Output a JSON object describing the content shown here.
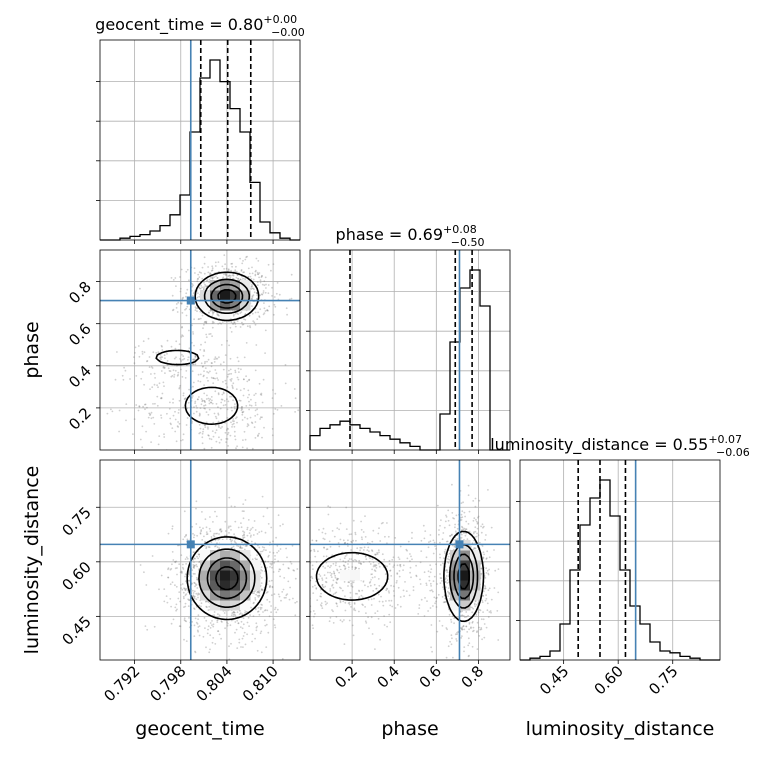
{
  "chart_data": {
    "type": "corner",
    "parameters": [
      {
        "key": "geocent_time",
        "label": "geocent_time",
        "range": [
          0.7875,
          0.8135
        ],
        "ticks": [
          0.792,
          0.798,
          0.804,
          0.81
        ],
        "tick_labels": [
          "0.792",
          "0.798",
          "0.804",
          "0.810"
        ],
        "truth": 0.7993,
        "title_label": "geocent_time",
        "title_median": "0.80",
        "title_plus": "+0.00",
        "title_minus": "−0.00"
      },
      {
        "key": "phase",
        "label": "phase",
        "range": [
          0.0,
          0.95
        ],
        "ticks": [
          0.2,
          0.4,
          0.6,
          0.8
        ],
        "tick_labels": [
          "0.2",
          "0.4",
          "0.6",
          "0.8"
        ],
        "truth": 0.71,
        "title_label": "phase",
        "title_median": "0.69",
        "title_plus": "+0.08",
        "title_minus": "−0.50"
      },
      {
        "key": "luminosity_distance",
        "label": "luminosity_distance",
        "range": [
          0.33,
          0.88
        ],
        "ticks": [
          0.45,
          0.6,
          0.75
        ],
        "tick_labels": [
          "0.45",
          "0.60",
          "0.75"
        ],
        "truth": 0.648,
        "title_label": "luminosity_distance",
        "title_median": "0.55",
        "title_plus": "+0.07",
        "title_minus": "−0.06"
      }
    ],
    "histograms": [
      {
        "param": "geocent_time",
        "bin_edges": [
          0.7875,
          0.7888,
          0.7901,
          0.7914,
          0.7927,
          0.794,
          0.7953,
          0.7966,
          0.7979,
          0.7992,
          0.8005,
          0.8018,
          0.8031,
          0.8044,
          0.8057,
          0.807,
          0.8083,
          0.8096,
          0.8109,
          0.8122,
          0.8135
        ],
        "counts": [
          0,
          0,
          1,
          2,
          3,
          5,
          8,
          14,
          25,
          60,
          90,
          100,
          88,
          73,
          60,
          32,
          10,
          4,
          1,
          0
        ],
        "quantiles": [
          0.8006,
          0.8041,
          0.8071
        ]
      },
      {
        "param": "phase",
        "bin_edges": [
          0.0,
          0.0475,
          0.095,
          0.1425,
          0.19,
          0.2375,
          0.285,
          0.3325,
          0.38,
          0.4275,
          0.475,
          0.5225,
          0.57,
          0.6175,
          0.665,
          0.7125,
          0.76,
          0.8075,
          0.855,
          0.9025,
          0.95
        ],
        "counts": [
          4,
          6,
          7,
          8,
          7,
          6,
          5,
          4,
          3,
          2,
          1,
          0,
          0,
          10,
          30,
          45,
          50,
          40,
          0,
          0
        ],
        "quantiles": [
          0.19,
          0.69,
          0.77
        ]
      },
      {
        "param": "luminosity_distance",
        "bin_edges": [
          0.33,
          0.3575,
          0.385,
          0.4125,
          0.44,
          0.4675,
          0.495,
          0.5225,
          0.55,
          0.5775,
          0.605,
          0.6325,
          0.66,
          0.6875,
          0.715,
          0.7425,
          0.77,
          0.7975,
          0.825,
          0.8525,
          0.88
        ],
        "counts": [
          0,
          1,
          2,
          5,
          20,
          50,
          75,
          90,
          100,
          80,
          50,
          30,
          20,
          10,
          5,
          4,
          2,
          1,
          0,
          0
        ],
        "quantiles": [
          0.49,
          0.55,
          0.62
        ]
      }
    ],
    "pairs": [
      {
        "x": "geocent_time",
        "y": "phase",
        "components": [
          {
            "mx": 0.804,
            "my": 0.73,
            "sx": 0.002,
            "sy": 0.055,
            "weight": 0.55
          },
          {
            "mx": 0.802,
            "my": 0.21,
            "sx": 0.0035,
            "sy": 0.09,
            "weight": 0.3
          },
          {
            "mx": 0.7975,
            "my": 0.44,
            "sx": 0.0025,
            "sy": 0.03,
            "weight": 0.08
          }
        ]
      },
      {
        "x": "geocent_time",
        "y": "luminosity_distance",
        "components": [
          {
            "mx": 0.804,
            "my": 0.555,
            "sx": 0.0025,
            "sy": 0.055,
            "weight": 1.0
          }
        ]
      },
      {
        "x": "phase",
        "y": "luminosity_distance",
        "components": [
          {
            "mx": 0.73,
            "my": 0.56,
            "sx": 0.045,
            "sy": 0.06,
            "weight": 0.6
          },
          {
            "mx": 0.2,
            "my": 0.56,
            "sx": 0.13,
            "sy": 0.05,
            "weight": 0.4
          }
        ]
      }
    ],
    "truth_color": "#4682b4",
    "quantile_levels": [
      0.16,
      0.5,
      0.84
    ],
    "grid": true
  }
}
